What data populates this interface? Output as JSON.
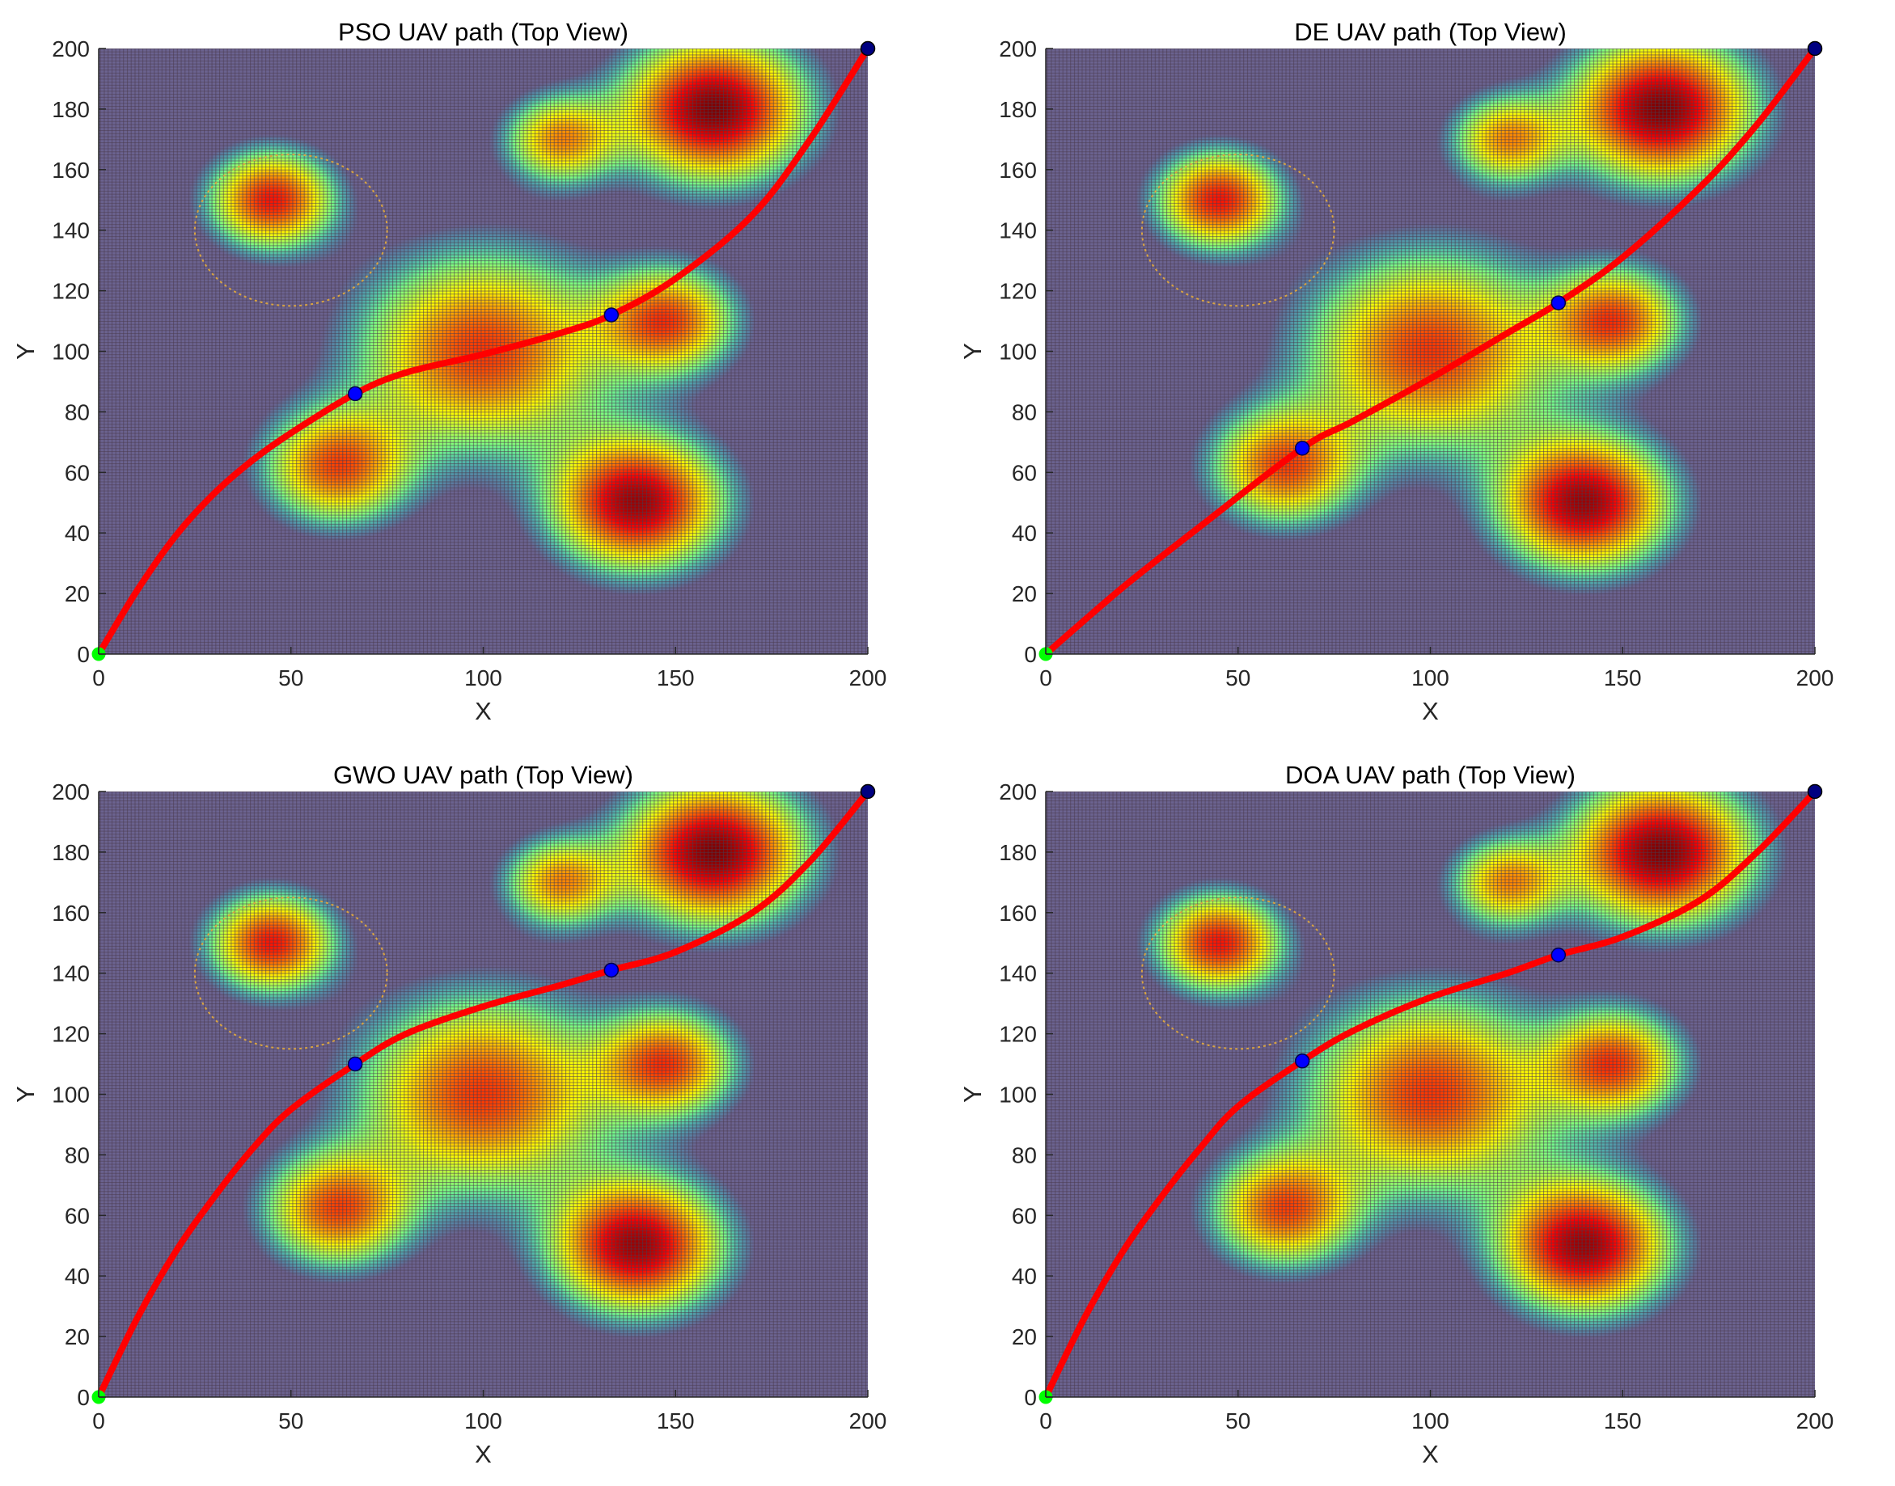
{
  "chart_data": [
    {
      "type": "line",
      "title": "PSO UAV path (Top View)",
      "xlabel": "X",
      "ylabel": "Y",
      "xlim": [
        0,
        200
      ],
      "ylim": [
        0,
        200
      ],
      "xticks": [
        0,
        50,
        100,
        150,
        200
      ],
      "yticks": [
        0,
        20,
        40,
        60,
        80,
        100,
        120,
        140,
        160,
        180,
        200
      ],
      "start": [
        0,
        0
      ],
      "end": [
        200,
        200
      ],
      "waypoints": [
        [
          66.7,
          86
        ],
        [
          133.3,
          112
        ]
      ],
      "path": {
        "x": [
          0,
          10,
          20,
          30,
          40,
          50,
          66.7,
          80,
          100,
          120,
          133.3,
          150,
          170,
          185,
          200
        ],
        "y": [
          0,
          21,
          39,
          53,
          64,
          73,
          86,
          93,
          99,
          106,
          112,
          124,
          145,
          170,
          200
        ]
      },
      "grid": true
    },
    {
      "type": "line",
      "title": "DE UAV path (Top View)",
      "xlabel": "X",
      "ylabel": "Y",
      "xlim": [
        0,
        200
      ],
      "ylim": [
        0,
        200
      ],
      "xticks": [
        0,
        50,
        100,
        150,
        200
      ],
      "yticks": [
        0,
        20,
        40,
        60,
        80,
        100,
        120,
        140,
        160,
        180,
        200
      ],
      "start": [
        0,
        0
      ],
      "end": [
        200,
        200
      ],
      "waypoints": [
        [
          66.7,
          68
        ],
        [
          133.3,
          116
        ]
      ],
      "path": {
        "x": [
          0,
          20,
          40,
          66.7,
          80,
          100,
          120,
          133.3,
          150,
          170,
          185,
          200
        ],
        "y": [
          0,
          22,
          42,
          68,
          77,
          91,
          106,
          116,
          131,
          154,
          175,
          200
        ]
      },
      "grid": true
    },
    {
      "type": "line",
      "title": "GWO UAV path (Top View)",
      "xlabel": "X",
      "ylabel": "Y",
      "xlim": [
        0,
        200
      ],
      "ylim": [
        0,
        200
      ],
      "xticks": [
        0,
        50,
        100,
        150,
        200
      ],
      "yticks": [
        0,
        20,
        40,
        60,
        80,
        100,
        120,
        140,
        160,
        180,
        200
      ],
      "start": [
        0,
        0
      ],
      "end": [
        200,
        200
      ],
      "waypoints": [
        [
          66.7,
          110
        ],
        [
          133.3,
          141
        ]
      ],
      "path": {
        "x": [
          0,
          10,
          20,
          30,
          40,
          50,
          66.7,
          80,
          100,
          120,
          133.3,
          150,
          170,
          185,
          200
        ],
        "y": [
          0,
          26,
          48,
          66,
          82,
          95,
          110,
          120,
          129,
          136,
          141,
          147,
          160,
          177,
          200
        ]
      },
      "grid": true
    },
    {
      "type": "line",
      "title": "DOA UAV path (Top View)",
      "xlabel": "X",
      "ylabel": "Y",
      "xlim": [
        0,
        200
      ],
      "ylim": [
        0,
        200
      ],
      "xticks": [
        0,
        50,
        100,
        150,
        200
      ],
      "yticks": [
        0,
        20,
        40,
        60,
        80,
        100,
        120,
        140,
        160,
        180,
        200
      ],
      "start": [
        0,
        0
      ],
      "end": [
        200,
        200
      ],
      "waypoints": [
        [
          66.7,
          111
        ],
        [
          133.3,
          146
        ]
      ],
      "path": {
        "x": [
          0,
          10,
          20,
          30,
          40,
          50,
          66.7,
          80,
          100,
          120,
          133.3,
          150,
          170,
          185,
          200
        ],
        "y": [
          0,
          26,
          48,
          66,
          82,
          96,
          111,
          121,
          132,
          140,
          146,
          152,
          164,
          180,
          200
        ]
      },
      "grid": true
    }
  ],
  "terrain": {
    "peaks": [
      {
        "x": 45,
        "y": 150,
        "sigma": 11,
        "height": 0.8
      },
      {
        "x": 62,
        "y": 62,
        "sigma": 13,
        "height": 0.7
      },
      {
        "x": 100,
        "y": 100,
        "sigma": 22,
        "height": 0.75
      },
      {
        "x": 120,
        "y": 170,
        "sigma": 10,
        "height": 0.6
      },
      {
        "x": 140,
        "y": 50,
        "sigma": 15,
        "height": 0.95
      },
      {
        "x": 148,
        "y": 110,
        "sigma": 12,
        "height": 0.7
      },
      {
        "x": 160,
        "y": 180,
        "sigma": 16,
        "height": 1.0
      }
    ],
    "threat_zone": {
      "x": 50,
      "y": 140,
      "r": 25
    }
  },
  "colors": {
    "path": "#ff0000",
    "waypoint": "#0000ff",
    "start": "#00ff00",
    "end": "#000080",
    "threat": "#d9a441",
    "grid_dark": "#4a3a4e",
    "low_terrain": "#6b6390"
  }
}
